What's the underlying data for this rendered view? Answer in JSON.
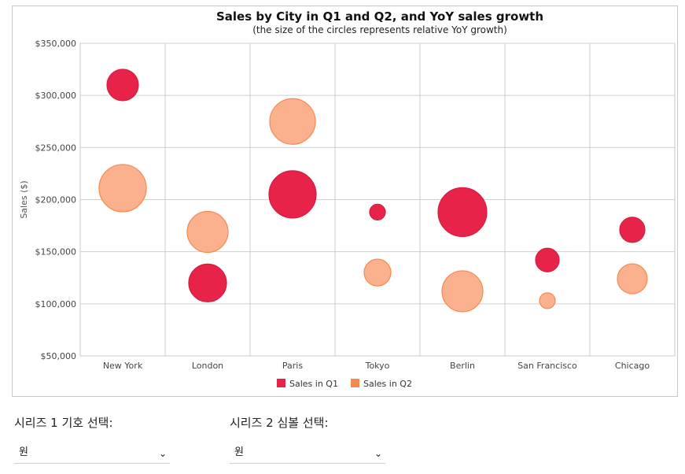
{
  "chart_data": {
    "type": "bubble",
    "title": "Sales by City in Q1 and Q2, and YoY sales growth",
    "subtitle": "(the size of the circles represents relative YoY growth)",
    "ylabel": "Sales ($)",
    "xlabel": "",
    "ylim": [
      50000,
      350000
    ],
    "yticks": [
      "$50,000",
      "$100,000",
      "$150,000",
      "$200,000",
      "$250,000",
      "$300,000",
      "$350,000"
    ],
    "ytick_values": [
      50000,
      100000,
      150000,
      200000,
      250000,
      300000,
      350000
    ],
    "categories": [
      "New York",
      "London",
      "Paris",
      "Tokyo",
      "Berlin",
      "San Francisco",
      "Chicago"
    ],
    "grid": true,
    "legend_position": "bottom",
    "series": [
      {
        "name": "Sales in Q1",
        "color": "#e8234a",
        "stroke": "#d41e40",
        "values": [
          310000,
          120000,
          205000,
          188000,
          188000,
          142000,
          171000
        ],
        "size": [
          20,
          24,
          30,
          10,
          31,
          15,
          16
        ]
      },
      {
        "name": "Sales in Q2",
        "color": "#fbb18e",
        "stroke": "#f58a4e",
        "values": [
          211000,
          169000,
          275000,
          130000,
          112000,
          103000,
          124000
        ],
        "size": [
          30,
          26,
          29,
          17,
          26,
          10,
          19
        ]
      }
    ],
    "legend_swatch_colors": [
      "#e8234a",
      "#f58a4e"
    ]
  },
  "controls": {
    "series1_label": "시리즈 1 기호 선택:",
    "series1_value": "원",
    "series2_label": "시리즈 2 심볼 선택:",
    "series2_value": "원",
    "chevron_icon": "chevron-down-icon"
  }
}
